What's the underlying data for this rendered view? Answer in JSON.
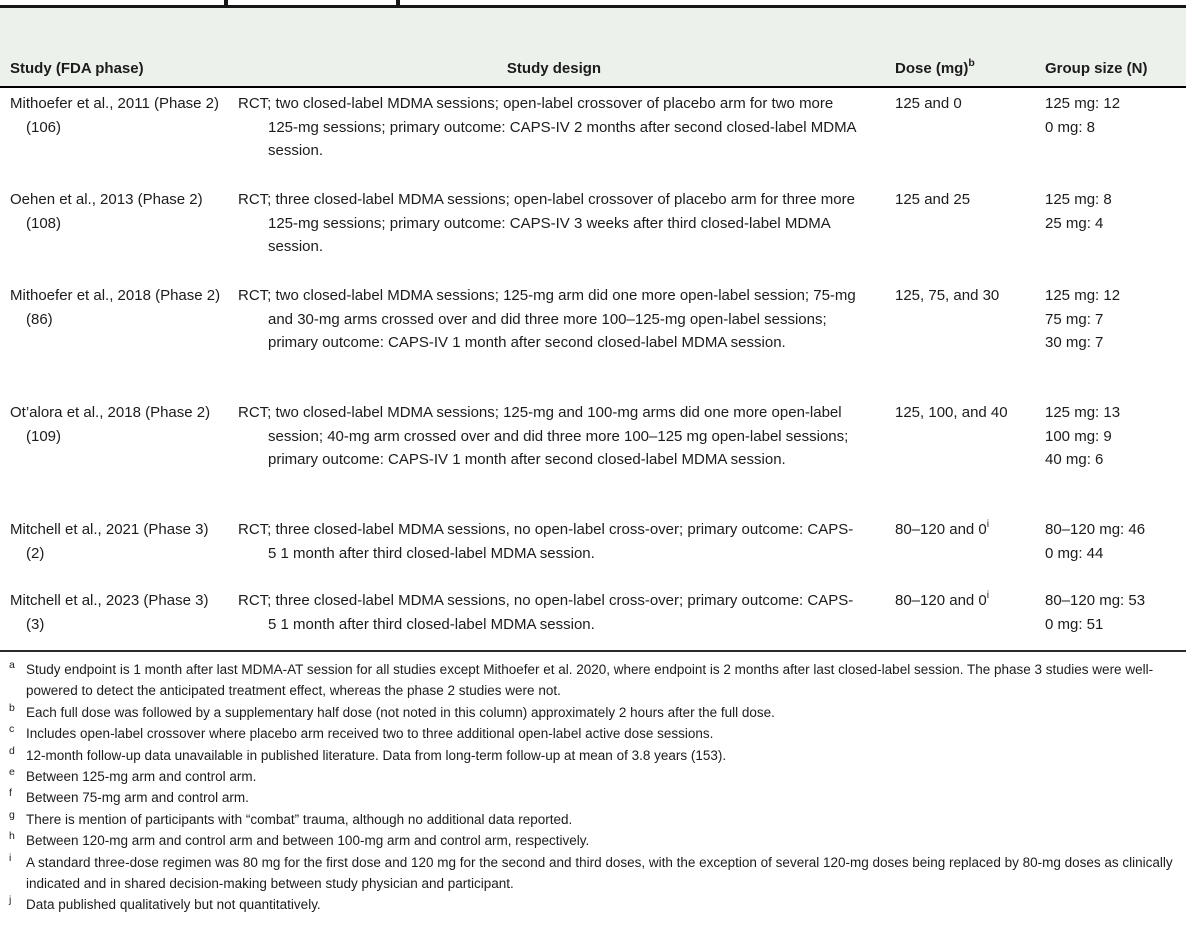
{
  "header": {
    "col_study": "Study (FDA phase)",
    "col_design": "Study design",
    "col_dose": "Dose (mg)",
    "col_dose_sup": "b",
    "col_group": "Group size (N)"
  },
  "rows": [
    {
      "study": "Mithoefer et al., 2011 (Phase 2) (106)",
      "design": "RCT; two closed-label MDMA sessions; open-label crossover of placebo arm for two more 125-mg sessions; primary outcome: CAPS-IV 2 months after second closed-label MDMA session.",
      "dose": "125 and 0",
      "dose_sup": "",
      "group": [
        "125 mg: 12",
        "0 mg: 8"
      ]
    },
    {
      "study": "Oehen et al., 2013 (Phase 2) (108)",
      "design": "RCT; three closed-label MDMA sessions; open-label crossover of placebo arm for three more 125-mg sessions; primary outcome: CAPS-IV 3 weeks after third closed-label MDMA session.",
      "dose": "125 and 25",
      "dose_sup": "",
      "group": [
        "125 mg: 8",
        "25 mg: 4"
      ]
    },
    {
      "study": "Mithoefer et al., 2018 (Phase 2) (86)",
      "design": "RCT; two closed-label MDMA sessions; 125-mg arm did one more open-label session; 75-mg and 30-mg arms crossed over and did three more 100–125-mg open-label sessions; primary outcome: CAPS-IV 1 month after second closed-label MDMA session.",
      "dose": "125, 75, and 30",
      "dose_sup": "",
      "group": [
        "125 mg: 12",
        "75 mg: 7",
        "30 mg: 7"
      ]
    },
    {
      "study": "Ot’alora et al., 2018 (Phase 2) (109)",
      "design": "RCT; two closed-label MDMA sessions; 125-mg and 100-mg arms did one more open-label session; 40-mg arm crossed over and did three more 100–125 mg open-label sessions; primary outcome: CAPS-IV 1 month after second closed-label MDMA session.",
      "dose": "125, 100, and 40",
      "dose_sup": "",
      "group": [
        "125 mg: 13",
        "100 mg: 9",
        "40 mg: 6"
      ]
    },
    {
      "study": "Mitchell et al., 2021 (Phase 3) (2)",
      "design": "RCT; three closed-label MDMA sessions, no open-label cross-over; primary outcome: CAPS-5 1 month after third closed-label MDMA session.",
      "dose": "80–120 and 0",
      "dose_sup": "i",
      "group": [
        "80–120 mg: 46",
        "0 mg: 44"
      ]
    },
    {
      "study": "Mitchell et al., 2023 (Phase 3) (3)",
      "design": "RCT; three closed-label MDMA sessions, no open-label cross-over; primary outcome: CAPS-5 1 month after third closed-label MDMA session.",
      "dose": "80–120 and 0",
      "dose_sup": "i",
      "group": [
        "80–120 mg: 53",
        "0 mg: 51"
      ]
    }
  ],
  "footnotes": [
    {
      "sup": "a",
      "text": "Study endpoint is 1 month after last MDMA-AT session for all studies except Mithoefer et al. 2020, where endpoint is 2 months after last closed-label session. The phase 3 studies were well-powered to detect the anticipated treatment effect, whereas the phase 2 studies were not."
    },
    {
      "sup": "b",
      "text": "Each full dose was followed by a supplementary half dose (not noted in this column) approximately 2 hours after the full dose."
    },
    {
      "sup": "c",
      "text": "Includes open-label crossover where placebo arm received two to three additional open-label active dose sessions."
    },
    {
      "sup": "d",
      "text": "12-month follow-up data unavailable in published literature. Data from long-term follow-up at mean of 3.8 years (153)."
    },
    {
      "sup": "e",
      "text": "Between 125-mg arm and control arm."
    },
    {
      "sup": "f",
      "text": "Between 75-mg arm and control arm."
    },
    {
      "sup": "g",
      "text": "There is mention of participants with “combat” trauma, although no additional data reported."
    },
    {
      "sup": "h",
      "text": "Between 120-mg arm and control arm and between 100-mg arm and control arm, respectively."
    },
    {
      "sup": "i",
      "text": "A standard three-dose regimen was 80 mg for the first dose and 120 mg for the second and third doses, with the exception of several 120-mg doses being replaced by 80-mg doses as clinically indicated and in shared decision-making between study physician and participant."
    },
    {
      "sup": "j",
      "text": "Data published qualitatively but not quantitatively."
    }
  ]
}
